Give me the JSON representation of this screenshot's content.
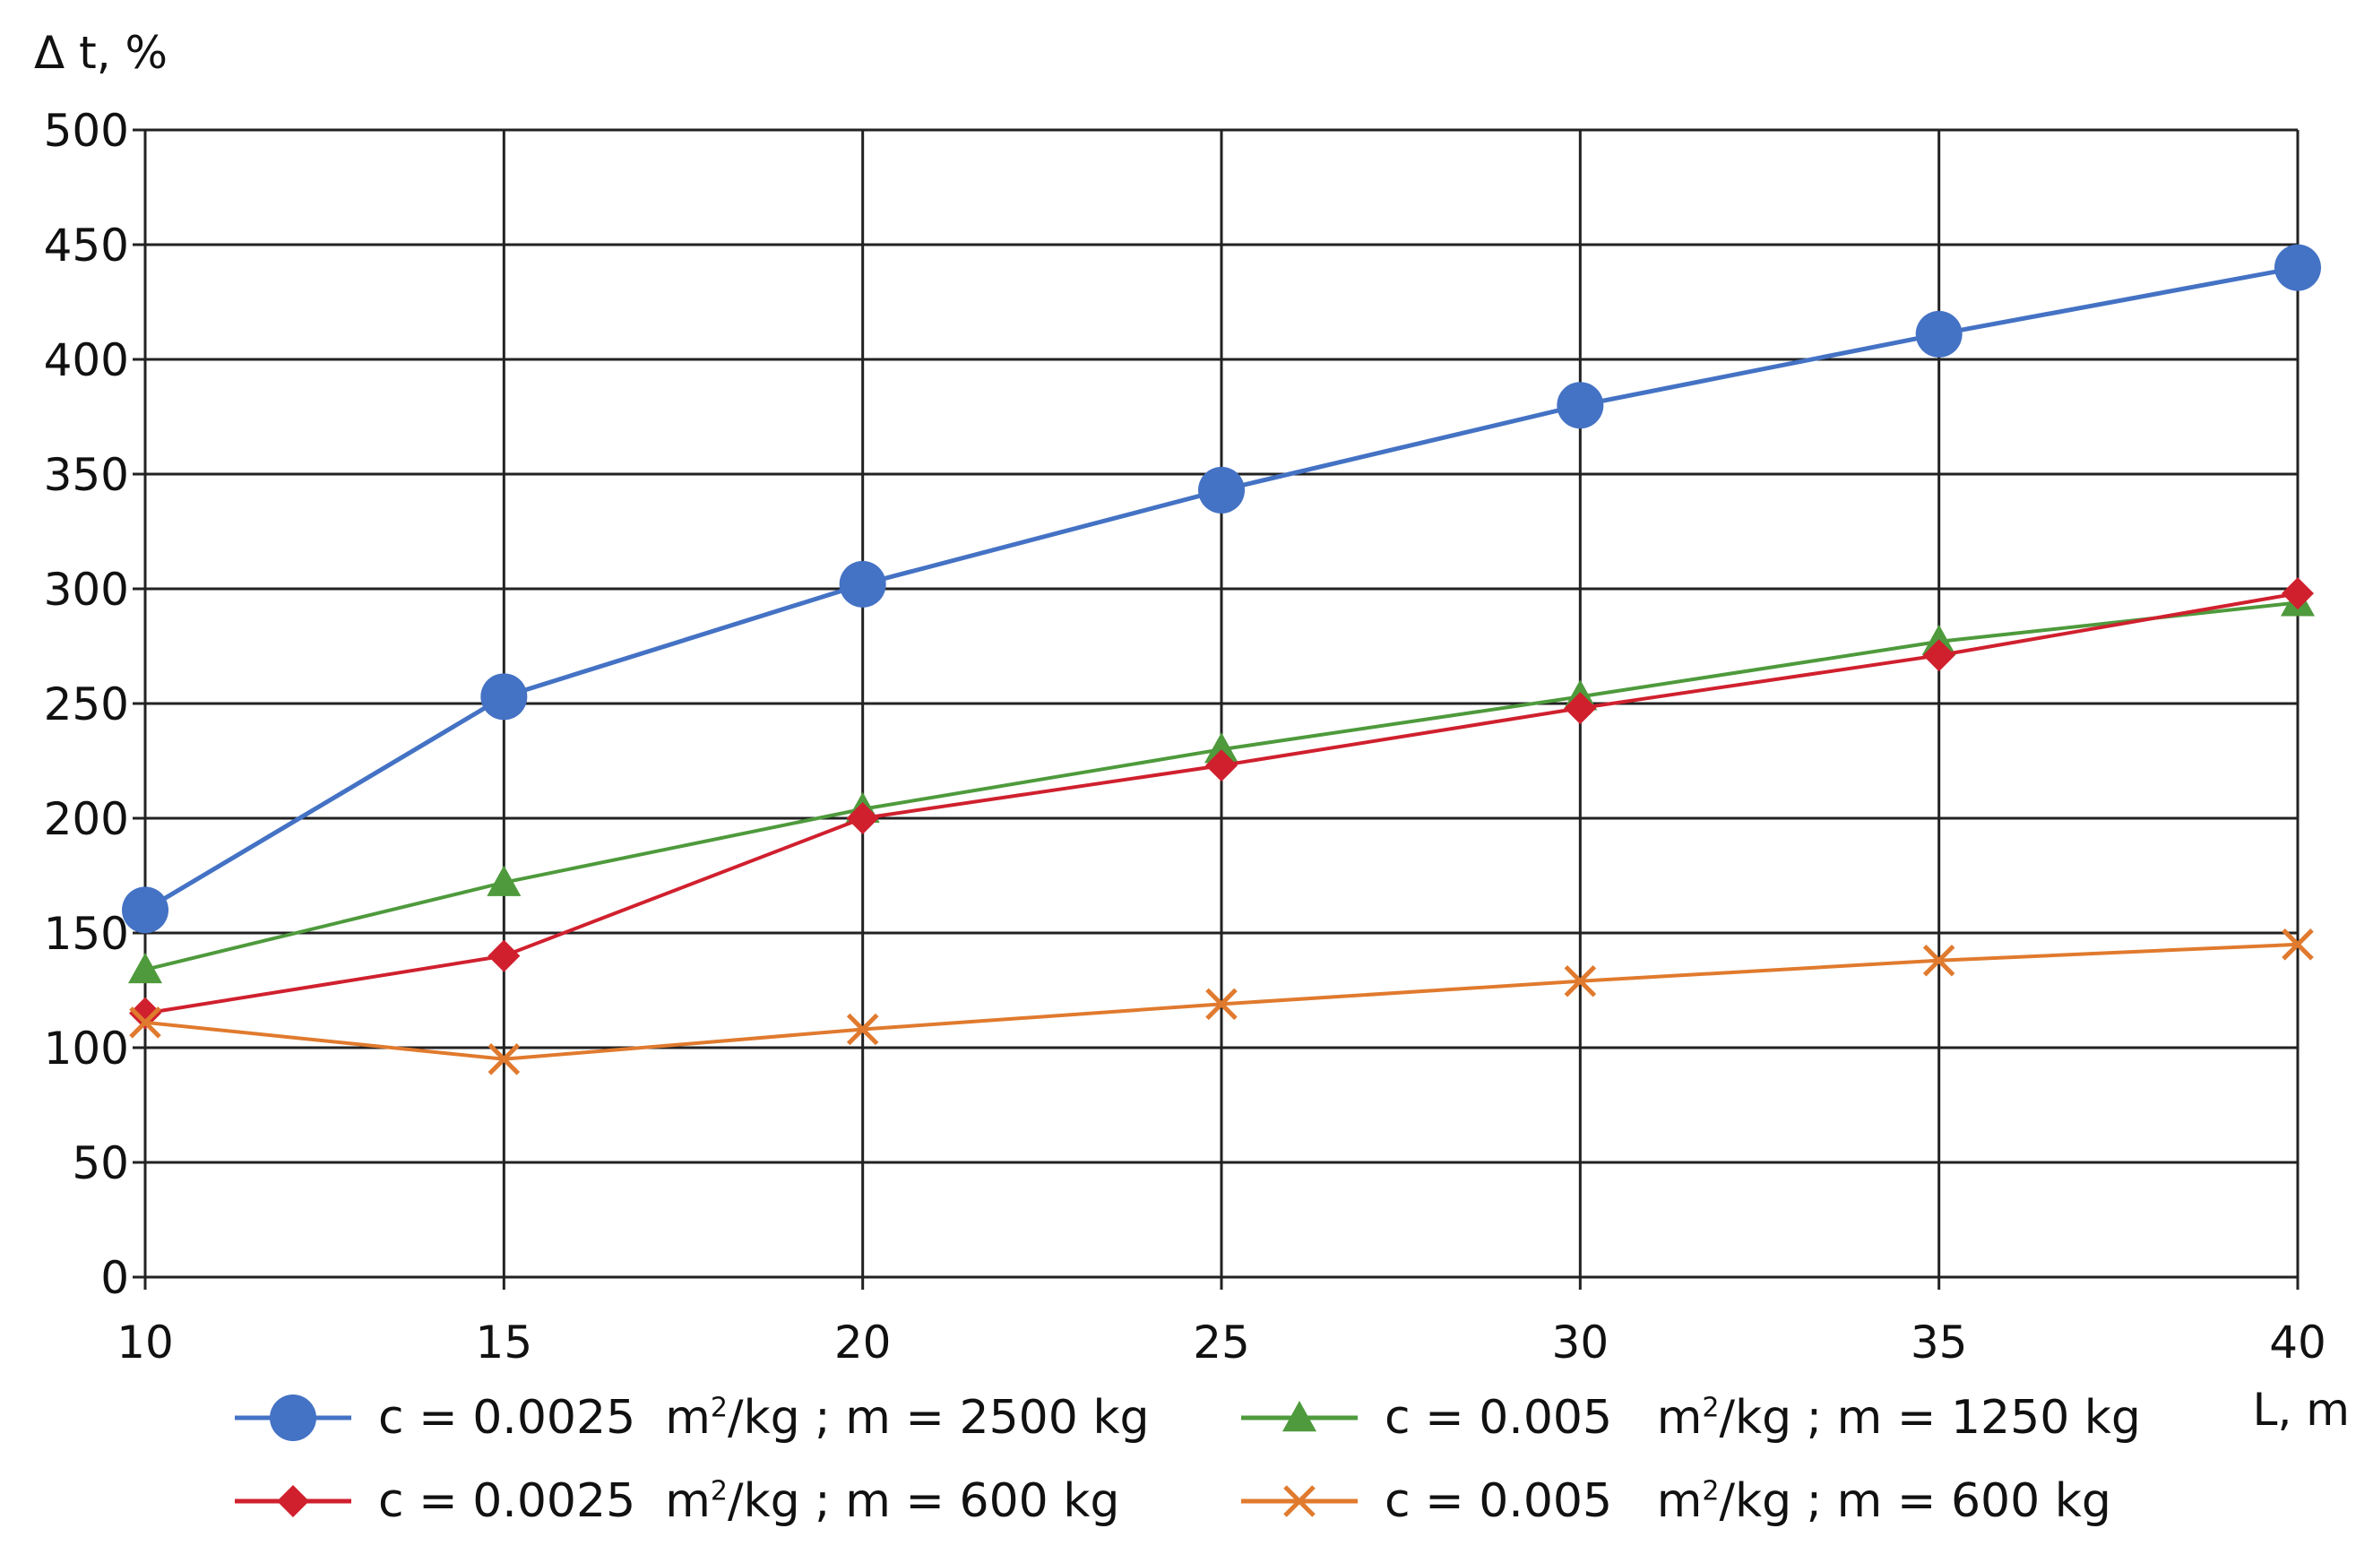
{
  "chart_data": {
    "type": "line",
    "title": "",
    "ylabel": "Δ t, %",
    "xlabel": "L, m",
    "x": [
      10,
      15,
      20,
      25,
      30,
      35,
      40
    ],
    "xlim": [
      10,
      40
    ],
    "ylim": [
      0,
      500
    ],
    "xticks": [
      "10",
      "15",
      "20",
      "25",
      "30",
      "35",
      "40"
    ],
    "yticks": [
      "0",
      "50",
      "100",
      "150",
      "200",
      "250",
      "300",
      "350",
      "400",
      "450",
      "500"
    ],
    "grid": true,
    "legend_position": "bottom",
    "series": [
      {
        "name": "c = 0.0025 m²/kg ; m = 2500 kg",
        "c_text": "c = 0.0025",
        "unit_m": "m",
        "unit_sup": "2",
        "unit_rest": "/kg ; m = 2500 kg",
        "color": "#4472C4",
        "marker": "circle",
        "values": [
          160,
          253,
          302,
          343,
          380,
          411,
          440
        ]
      },
      {
        "name": "c = 0.005 m²/kg ; m = 1250 kg",
        "c_text": "c = 0.005",
        "unit_m": "m",
        "unit_sup": "2",
        "unit_rest": "/kg ; m = 1250 kg",
        "color": "#4E9A3C",
        "marker": "triangle",
        "values": [
          134,
          172,
          204,
          230,
          253,
          277,
          294
        ]
      },
      {
        "name": "c = 0.0025 m²/kg ; m = 600 kg",
        "c_text": "c = 0.0025",
        "unit_m": "m",
        "unit_sup": "2",
        "unit_rest": "/kg ; m = 600 kg",
        "color": "#D0202E",
        "marker": "diamond",
        "values": [
          115,
          140,
          200,
          223,
          248,
          271,
          298
        ]
      },
      {
        "name": "c = 0.005 m²/kg ; m = 600 kg",
        "c_text": "c = 0.005",
        "unit_m": "m",
        "unit_sup": "2",
        "unit_rest": "/kg ; m = 600 kg",
        "color": "#E07A2E",
        "marker": "x",
        "values": [
          111,
          95,
          108,
          119,
          129,
          138,
          145
        ]
      }
    ]
  }
}
